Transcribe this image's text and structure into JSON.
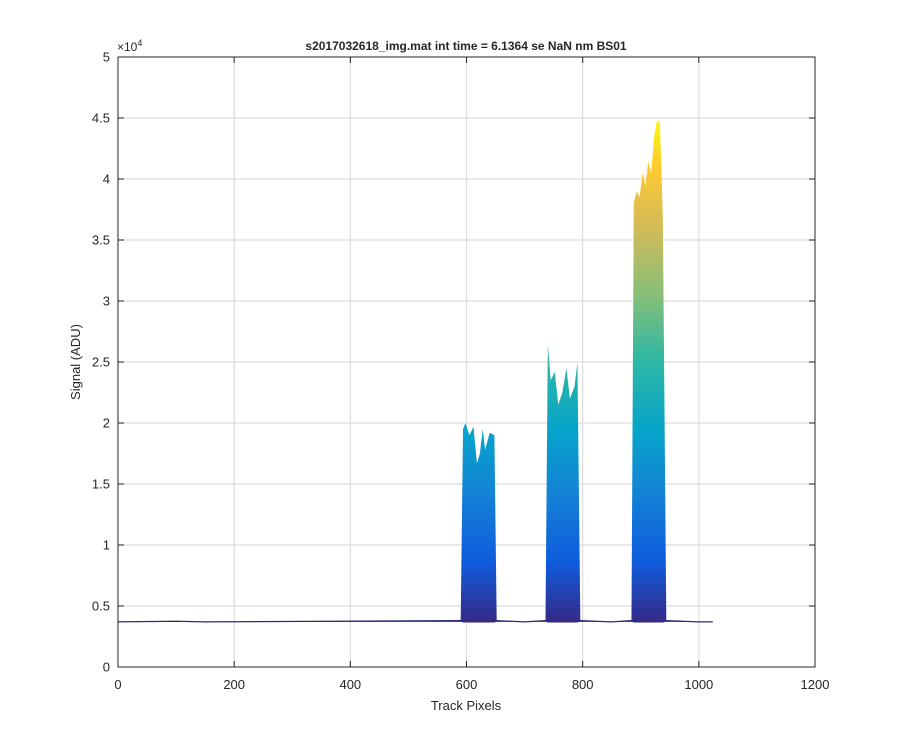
{
  "chart_data": {
    "type": "area",
    "title": "s2017032618_img.mat int time = 6.1364 se  NaN nm BS01",
    "xlabel": "Track Pixels",
    "ylabel": "Signal (ADU)",
    "xlim": [
      0,
      1200
    ],
    "ylim": [
      0,
      50000
    ],
    "y_multiplier_label": "×10",
    "y_multiplier_exponent": "4",
    "xticks": [
      0,
      200,
      400,
      600,
      800,
      1000,
      1200
    ],
    "xtick_labels": [
      "0",
      "200",
      "400",
      "600",
      "800",
      "1000",
      "1200"
    ],
    "yticks": [
      0,
      5000,
      10000,
      15000,
      20000,
      25000,
      30000,
      35000,
      40000,
      45000,
      50000
    ],
    "ytick_labels": [
      "0",
      "0.5",
      "1",
      "1.5",
      "2",
      "2.5",
      "3",
      "3.5",
      "4",
      "4.5",
      "5"
    ],
    "grid": true,
    "colormap": "parula",
    "series": [
      {
        "baseline": 3700,
        "peak_envelope": [
          [
            0,
            3700
          ],
          [
            100,
            3750
          ],
          [
            150,
            3700
          ],
          [
            590,
            3800
          ],
          [
            594,
            19500
          ],
          [
            598,
            20000
          ],
          [
            605,
            19000
          ],
          [
            612,
            19700
          ],
          [
            618,
            16700
          ],
          [
            623,
            17500
          ],
          [
            628,
            19500
          ],
          [
            632,
            17800
          ],
          [
            640,
            19200
          ],
          [
            648,
            19000
          ],
          [
            652,
            3800
          ],
          [
            700,
            3700
          ],
          [
            736,
            3800
          ],
          [
            740,
            26500
          ],
          [
            745,
            23500
          ],
          [
            752,
            24200
          ],
          [
            758,
            21500
          ],
          [
            765,
            22500
          ],
          [
            772,
            24500
          ],
          [
            778,
            22000
          ],
          [
            786,
            23000
          ],
          [
            791,
            25000
          ],
          [
            796,
            3800
          ],
          [
            850,
            3700
          ],
          [
            884,
            3800
          ],
          [
            888,
            38000
          ],
          [
            893,
            39000
          ],
          [
            898,
            38500
          ],
          [
            903,
            40500
          ],
          [
            908,
            39500
          ],
          [
            913,
            41500
          ],
          [
            918,
            40500
          ],
          [
            923,
            43500
          ],
          [
            928,
            44800
          ],
          [
            933,
            44600
          ],
          [
            938,
            37000
          ],
          [
            944,
            3800
          ],
          [
            1000,
            3700
          ],
          [
            1024,
            3700
          ]
        ]
      }
    ]
  }
}
